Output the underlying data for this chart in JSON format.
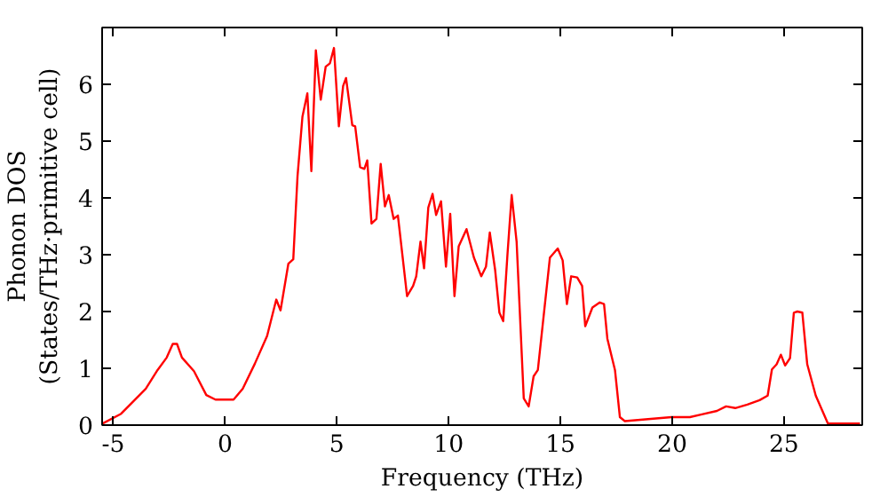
{
  "chart_data": {
    "type": "line",
    "xlabel": "Frequency (THz)",
    "ylabel": "Phonon DOS\n(States/THz·primitive cell)",
    "xlim": [
      -5.5,
      28.5
    ],
    "ylim": [
      0,
      7
    ],
    "xticks": [
      -5,
      0,
      5,
      10,
      15,
      20,
      25
    ],
    "yticks": [
      0,
      1,
      2,
      3,
      4,
      5,
      6
    ],
    "grid": false,
    "series": [
      {
        "color": "#ff0000",
        "x": [
          -5.47,
          -4.65,
          -4.1,
          -3.55,
          -3.02,
          -2.61,
          -2.34,
          -2.15,
          -1.93,
          -1.39,
          -0.84,
          -0.43,
          0.38,
          0.79,
          1.33,
          1.88,
          2.29,
          2.48,
          2.83,
          3.05,
          3.24,
          3.46,
          3.68,
          3.86,
          4.06,
          4.28,
          4.5,
          4.69,
          4.87,
          5.09,
          5.28,
          5.41,
          5.69,
          5.82,
          6.04,
          6.23,
          6.36,
          6.55,
          6.77,
          6.96,
          7.15,
          7.32,
          7.54,
          7.73,
          8.14,
          8.41,
          8.55,
          8.74,
          8.9,
          9.09,
          9.28,
          9.44,
          9.66,
          9.88,
          10.07,
          10.26,
          10.45,
          10.8,
          11.13,
          11.46,
          11.67,
          11.84,
          12.08,
          12.27,
          12.44,
          12.63,
          12.82,
          13.04,
          13.36,
          13.58,
          13.8,
          13.99,
          14.53,
          14.88,
          15.1,
          15.29,
          15.48,
          15.75,
          15.97,
          16.11,
          16.43,
          16.76,
          16.95,
          17.1,
          17.44,
          17.66,
          17.88,
          19.97,
          20.79,
          21.33,
          22.0,
          22.41,
          22.82,
          23.36,
          23.91,
          24.27,
          24.46,
          24.67,
          24.86,
          25.05,
          25.27,
          25.44,
          25.6,
          25.82,
          26.04,
          26.42,
          26.96,
          28.4
        ],
        "values": [
          0.03,
          0.2,
          0.42,
          0.64,
          0.97,
          1.19,
          1.43,
          1.43,
          1.19,
          0.95,
          0.53,
          0.45,
          0.45,
          0.64,
          1.08,
          1.57,
          2.21,
          2.02,
          2.84,
          2.92,
          4.38,
          5.43,
          5.84,
          4.47,
          6.6,
          5.73,
          6.31,
          6.37,
          6.64,
          5.26,
          5.97,
          6.11,
          5.28,
          5.26,
          4.54,
          4.51,
          4.66,
          3.55,
          3.63,
          4.6,
          3.85,
          4.05,
          3.63,
          3.69,
          2.27,
          2.45,
          2.62,
          3.23,
          2.76,
          3.83,
          4.07,
          3.7,
          3.94,
          2.79,
          3.72,
          2.27,
          3.15,
          3.45,
          2.95,
          2.62,
          2.79,
          3.39,
          2.73,
          1.98,
          1.83,
          3.0,
          4.05,
          3.23,
          0.47,
          0.33,
          0.86,
          0.97,
          2.95,
          3.11,
          2.9,
          2.13,
          2.62,
          2.6,
          2.45,
          1.74,
          2.07,
          2.16,
          2.13,
          1.52,
          0.97,
          0.14,
          0.07,
          0.14,
          0.14,
          0.19,
          0.25,
          0.33,
          0.3,
          0.36,
          0.44,
          0.52,
          0.98,
          1.07,
          1.24,
          1.05,
          1.18,
          1.98,
          2.0,
          1.98,
          1.07,
          0.52,
          0.03,
          0.03
        ]
      }
    ]
  }
}
